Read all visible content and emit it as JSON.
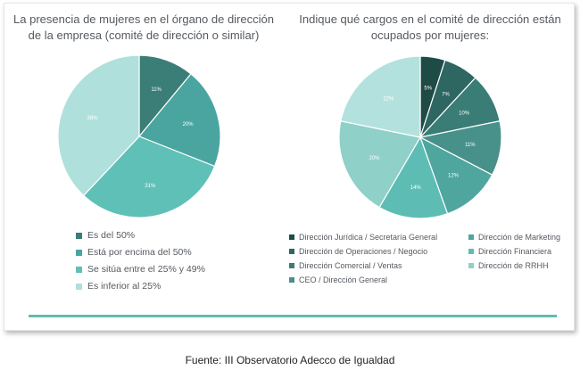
{
  "chart_data": [
    {
      "type": "pie",
      "title": "La presencia de mujeres en el órgano de dirección de la empresa (comité de dirección o similar)",
      "slices": [
        {
          "label": "Es del 50%",
          "value": 11,
          "value_label": "11%",
          "color": "#3b7d77"
        },
        {
          "label": "Está por encima del 50%",
          "value": 20,
          "value_label": "20%",
          "color": "#4aa5a0"
        },
        {
          "label": "Se sitúa entre el 25% y 49%",
          "value": 31,
          "value_label": "31%",
          "color": "#5fc0b8"
        },
        {
          "label": "Es inferior al 25%",
          "value": 38,
          "value_label": "38%",
          "color": "#b0e0dc"
        }
      ],
      "legend_position": "bottom-left"
    },
    {
      "type": "pie",
      "title": "Indique qué cargos en el comité de dirección están ocupados por mujeres:",
      "slices": [
        {
          "label": "Dirección Jurídica / Secretaría General",
          "value": 5,
          "value_label": "5%",
          "color": "#1f4b47"
        },
        {
          "label": "Dirección de Operaciones / Negocio",
          "value": 7,
          "value_label": "7%",
          "color": "#2e6661"
        },
        {
          "label": "Dirección Comercial / Ventas",
          "value": 10,
          "value_label": "10%",
          "color": "#3a7d76"
        },
        {
          "label": "CEO / Dirección General",
          "value": 11,
          "value_label": "11%",
          "color": "#48918a"
        },
        {
          "label": "Dirección de Marketing",
          "value": 12,
          "value_label": "12%",
          "color": "#4ea69f"
        },
        {
          "label": "Dirección Financiera",
          "value": 14,
          "value_label": "14%",
          "color": "#5dbdb4"
        },
        {
          "label": "Dirección de RRHH",
          "value": 20,
          "value_label": "20%",
          "color": "#8fd0c9"
        },
        {
          "label": "",
          "value": 22,
          "value_label": "22%",
          "color": "#b3e2de"
        }
      ],
      "legend_columns": [
        [
          "Dirección Jurídica / Secretaría General",
          "Dirección de Operaciones / Negocio",
          "Dirección Comercial / Ventas",
          "CEO / Dirección General"
        ],
        [
          "Dirección de Marketing",
          "Dirección Financiera",
          "Dirección de RRHH"
        ]
      ],
      "legend_position": "bottom"
    }
  ],
  "source": "Fuente: III Observatorio Adecco de Igualdad",
  "colors": {
    "accent_rule": "#5fbcb4",
    "title_text": "#555a60"
  }
}
